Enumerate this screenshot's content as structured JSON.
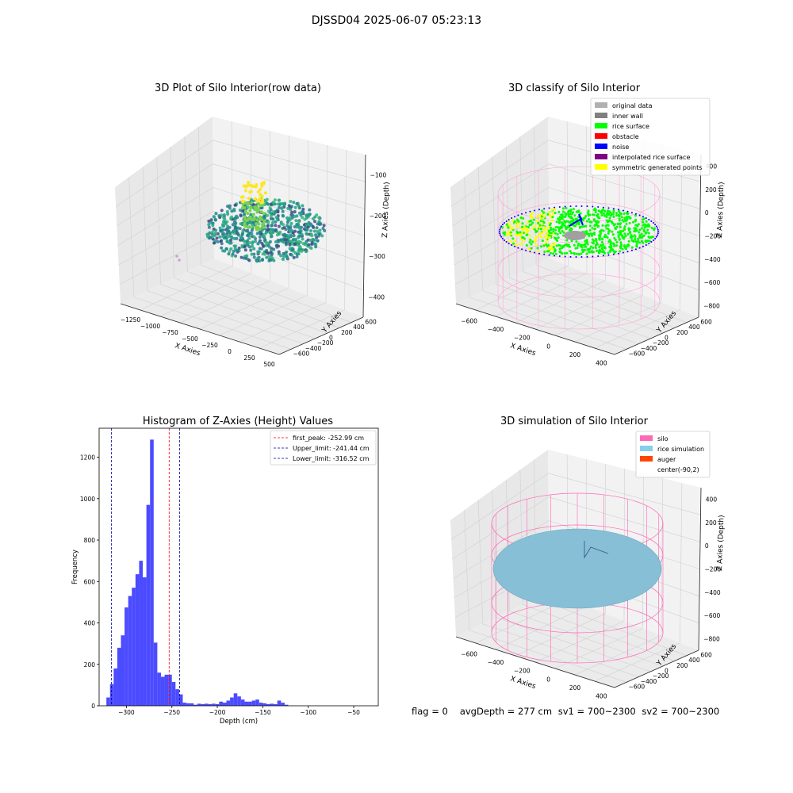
{
  "figure": {
    "title": "DJSSD04 2025-06-07 05:23:13",
    "footer": {
      "flag": "flag = 0",
      "avg_depth": "avgDepth = 277 cm",
      "sv1": "sv1 = 700~2300",
      "sv2": "sv2 = 700~2300"
    }
  },
  "chart_data": [
    {
      "type": "scatter",
      "projection": "3d",
      "title": "3D Plot of Silo Interior(row data)",
      "xlabel": "X Axies",
      "ylabel": "Y Axies",
      "zlabel": "Z Axies (Depth)",
      "x_ticks": [
        "−1250",
        "−1000",
        "−750",
        "−500",
        "−250",
        "0",
        "250",
        "500"
      ],
      "y_ticks": [
        "−600",
        "−400",
        "−200",
        "0",
        "200",
        "400",
        "600"
      ],
      "z_ticks": [
        "−100",
        "−200",
        "−300",
        "−400"
      ],
      "colormap": "viridis",
      "grid": true
    },
    {
      "type": "scatter",
      "projection": "3d",
      "title": "3D classify of Silo Interior",
      "xlabel": "X Axies",
      "ylabel": "Y Axies",
      "zlabel": "Z Axies (Depth)",
      "x_ticks": [
        "−600",
        "−400",
        "−200",
        "0",
        "200",
        "400"
      ],
      "y_ticks": [
        "−600",
        "−400",
        "−200",
        "0",
        "200",
        "400",
        "600"
      ],
      "z_ticks": [
        "400",
        "200",
        "0",
        "−200",
        "−400",
        "−600",
        "−800"
      ],
      "legend_position": "top-right",
      "legend": [
        {
          "label": "original data",
          "color": "#b0b0b0"
        },
        {
          "label": "inner wall",
          "color": "#808080"
        },
        {
          "label": "rice surface",
          "color": "#00ff00"
        },
        {
          "label": "obstacle",
          "color": "#ff0000"
        },
        {
          "label": "noise",
          "color": "#0000ff"
        },
        {
          "label": "interpolated rice surface",
          "color": "#800080"
        },
        {
          "label": "symmetric generated points",
          "color": "#ffff00"
        }
      ],
      "grid": true
    },
    {
      "type": "bar",
      "subtype": "histogram",
      "title": "Histogram of Z-Axies (Height) Values",
      "xlabel": "Depth (cm)",
      "ylabel": "Frequency",
      "xlim": [
        -330,
        -23
      ],
      "ylim": [
        0,
        1340
      ],
      "x_ticks": [
        -300,
        -250,
        -200,
        -150,
        -100,
        -50
      ],
      "x_tick_labels": [
        "−300",
        "−250",
        "−200",
        "−150",
        "−100",
        "−50"
      ],
      "y_ticks": [
        0,
        200,
        400,
        600,
        800,
        1000,
        1200
      ],
      "bin_width": 4,
      "bar_color": "#4b4bff",
      "bins": [
        {
          "x": -322,
          "v": 40
        },
        {
          "x": -318,
          "v": 105
        },
        {
          "x": -314,
          "v": 180
        },
        {
          "x": -310,
          "v": 280
        },
        {
          "x": -306,
          "v": 340
        },
        {
          "x": -302,
          "v": 475
        },
        {
          "x": -298,
          "v": 530
        },
        {
          "x": -294,
          "v": 570
        },
        {
          "x": -290,
          "v": 635
        },
        {
          "x": -286,
          "v": 700
        },
        {
          "x": -282,
          "v": 620
        },
        {
          "x": -278,
          "v": 970
        },
        {
          "x": -274,
          "v": 1285
        },
        {
          "x": -270,
          "v": 305
        },
        {
          "x": -266,
          "v": 160
        },
        {
          "x": -262,
          "v": 140
        },
        {
          "x": -258,
          "v": 150
        },
        {
          "x": -254,
          "v": 150
        },
        {
          "x": -250,
          "v": 115
        },
        {
          "x": -246,
          "v": 80
        },
        {
          "x": -242,
          "v": 55
        },
        {
          "x": -238,
          "v": 15
        },
        {
          "x": -234,
          "v": 12
        },
        {
          "x": -230,
          "v": 12
        },
        {
          "x": -226,
          "v": 5
        },
        {
          "x": -222,
          "v": 10
        },
        {
          "x": -218,
          "v": 8
        },
        {
          "x": -214,
          "v": 10
        },
        {
          "x": -210,
          "v": 8
        },
        {
          "x": -206,
          "v": 10
        },
        {
          "x": -202,
          "v": 8
        },
        {
          "x": -198,
          "v": 20
        },
        {
          "x": -194,
          "v": 15
        },
        {
          "x": -190,
          "v": 25
        },
        {
          "x": -186,
          "v": 40
        },
        {
          "x": -182,
          "v": 60
        },
        {
          "x": -178,
          "v": 45
        },
        {
          "x": -174,
          "v": 30
        },
        {
          "x": -170,
          "v": 20
        },
        {
          "x": -166,
          "v": 20
        },
        {
          "x": -162,
          "v": 25
        },
        {
          "x": -158,
          "v": 30
        },
        {
          "x": -154,
          "v": 15
        },
        {
          "x": -150,
          "v": 12
        },
        {
          "x": -146,
          "v": 8
        },
        {
          "x": -142,
          "v": 10
        },
        {
          "x": -138,
          "v": 8
        },
        {
          "x": -134,
          "v": 25
        },
        {
          "x": -130,
          "v": 15
        },
        {
          "x": -126,
          "v": 5
        }
      ],
      "reference_lines": [
        {
          "label": "first_peak: -252.99 cm",
          "x": -252.99,
          "color": "#ff0000"
        },
        {
          "label": "Upper_limit: -241.44 cm",
          "x": -241.44,
          "color": "#0000aa"
        },
        {
          "label": "Lower_limit: -316.52 cm",
          "x": -316.52,
          "color": "#0000aa"
        }
      ],
      "legend_position": "top-right"
    },
    {
      "type": "scatter",
      "projection": "3d",
      "title": "3D simulation of Silo Interior",
      "xlabel": "X Axies",
      "ylabel": "Y Axies",
      "zlabel": "Z Axies (Depth)",
      "x_ticks": [
        "−600",
        "−400",
        "−200",
        "0",
        "200",
        "400"
      ],
      "y_ticks": [
        "−600",
        "−400",
        "−200",
        "0",
        "200",
        "400",
        "600"
      ],
      "z_ticks": [
        "400",
        "200",
        "0",
        "−200",
        "−400",
        "−600",
        "−800"
      ],
      "legend_position": "top-right",
      "legend": [
        {
          "label": "silo",
          "color": "#ff69b4"
        },
        {
          "label": "rice simulation",
          "color": "#87ceeb"
        },
        {
          "label": "auger",
          "color": "#ff4500"
        },
        {
          "label": "center(-90,2)",
          "color": ""
        }
      ],
      "grid": true
    }
  ]
}
